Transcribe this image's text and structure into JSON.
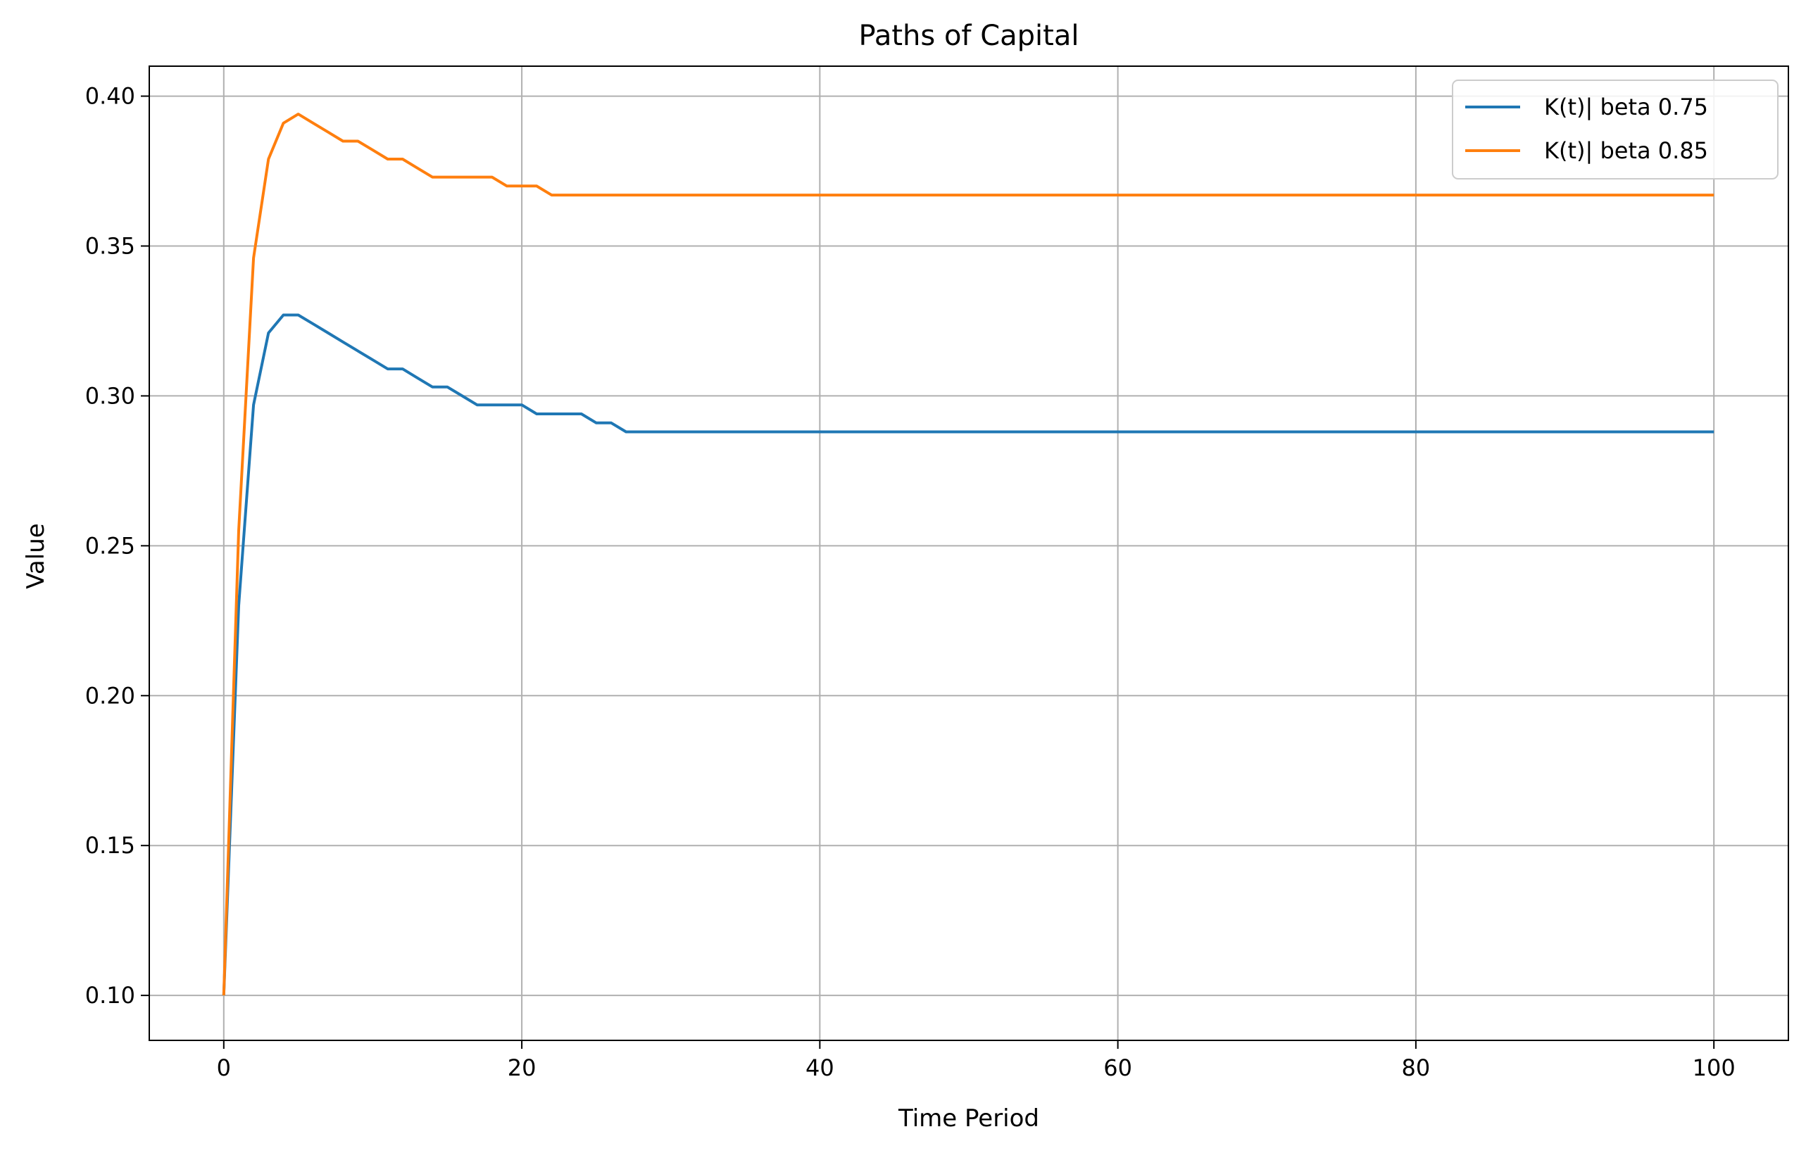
{
  "chart_data": {
    "type": "line",
    "title": "Paths of Capital",
    "xlabel": "Time Period",
    "ylabel": "Value",
    "xlim": [
      -5,
      105
    ],
    "ylim": [
      0.085,
      0.41
    ],
    "xticks": [
      0,
      20,
      40,
      60,
      80,
      100
    ],
    "yticks": [
      0.1,
      0.15,
      0.2,
      0.25,
      0.3,
      0.35,
      0.4
    ],
    "grid": true,
    "legend_position": "top-right",
    "series": [
      {
        "name": "K(t)| beta 0.75",
        "color": "#1f77b4",
        "points": [
          [
            0,
            0.1
          ],
          [
            1,
            0.23
          ],
          [
            2,
            0.297
          ],
          [
            3,
            0.321
          ],
          [
            4,
            0.327
          ],
          [
            5,
            0.327
          ],
          [
            6,
            0.324
          ],
          [
            7,
            0.321
          ],
          [
            8,
            0.318
          ],
          [
            9,
            0.315
          ],
          [
            10,
            0.312
          ],
          [
            11,
            0.309
          ],
          [
            12,
            0.309
          ],
          [
            13,
            0.306
          ],
          [
            14,
            0.303
          ],
          [
            15,
            0.303
          ],
          [
            16,
            0.3
          ],
          [
            17,
            0.297
          ],
          [
            18,
            0.297
          ],
          [
            19,
            0.297
          ],
          [
            20,
            0.297
          ],
          [
            21,
            0.294
          ],
          [
            22,
            0.294
          ],
          [
            23,
            0.294
          ],
          [
            24,
            0.294
          ],
          [
            25,
            0.291
          ],
          [
            26,
            0.291
          ],
          [
            27,
            0.288
          ],
          [
            100,
            0.288
          ]
        ]
      },
      {
        "name": "K(t)| beta 0.85",
        "color": "#ff7f0e",
        "points": [
          [
            0,
            0.1
          ],
          [
            1,
            0.255
          ],
          [
            2,
            0.346
          ],
          [
            3,
            0.379
          ],
          [
            4,
            0.391
          ],
          [
            5,
            0.394
          ],
          [
            6,
            0.391
          ],
          [
            7,
            0.388
          ],
          [
            8,
            0.385
          ],
          [
            9,
            0.385
          ],
          [
            10,
            0.382
          ],
          [
            11,
            0.379
          ],
          [
            12,
            0.379
          ],
          [
            13,
            0.376
          ],
          [
            14,
            0.373
          ],
          [
            15,
            0.373
          ],
          [
            16,
            0.373
          ],
          [
            17,
            0.373
          ],
          [
            18,
            0.373
          ],
          [
            19,
            0.37
          ],
          [
            20,
            0.37
          ],
          [
            21,
            0.37
          ],
          [
            22,
            0.367
          ],
          [
            100,
            0.367
          ]
        ]
      }
    ]
  }
}
